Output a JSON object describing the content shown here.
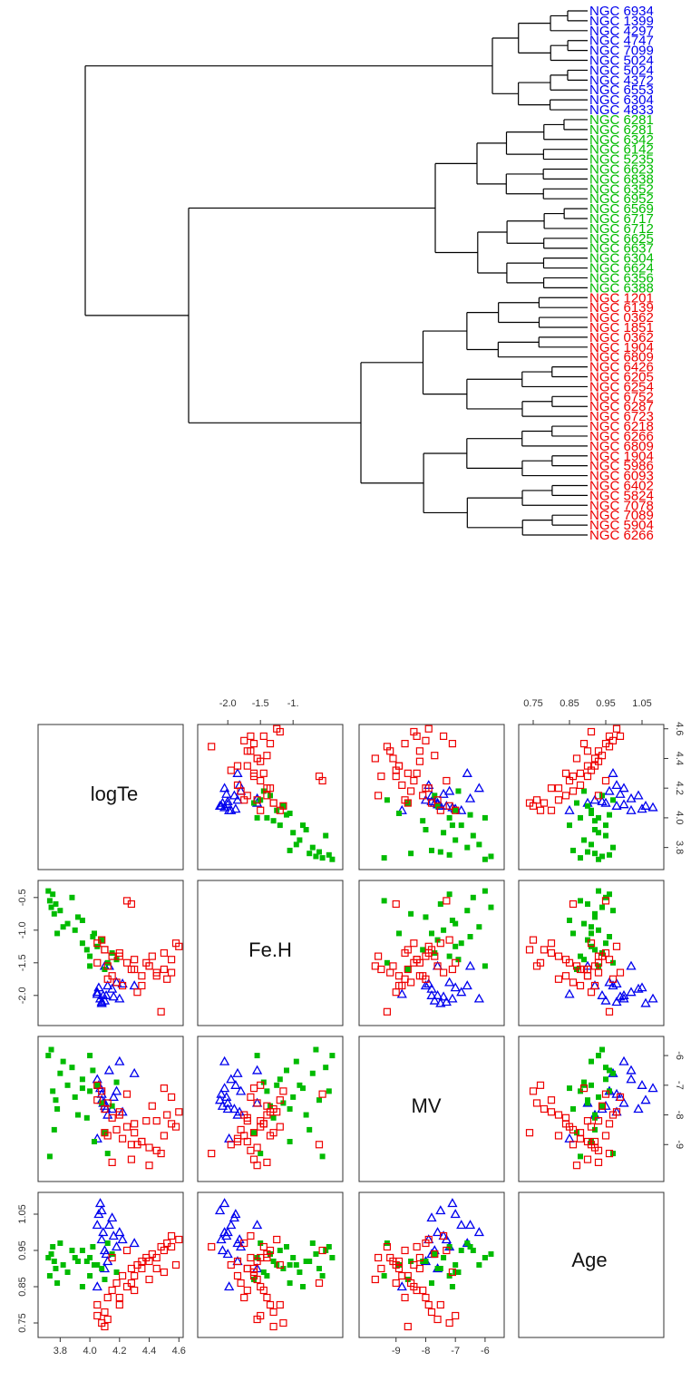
{
  "colors": {
    "cluster1": "#0000ee",
    "cluster2": "#00bb00",
    "cluster3": "#ee0000",
    "branch": "#000000",
    "panel_border": "#333333"
  },
  "chart_data": [
    {
      "type": "dendrogram",
      "orientation": "horizontal",
      "leaves": [
        {
          "label": "NGC 6934",
          "cluster": 1
        },
        {
          "label": "NGC 1399",
          "cluster": 1
        },
        {
          "label": "NGC 4297",
          "cluster": 1
        },
        {
          "label": "NGC 4747",
          "cluster": 1
        },
        {
          "label": "NGC 7099",
          "cluster": 1
        },
        {
          "label": "NGC 5024",
          "cluster": 1
        },
        {
          "label": "NGC 5024",
          "cluster": 1
        },
        {
          "label": "NGC 4372",
          "cluster": 1
        },
        {
          "label": "NGC 6553",
          "cluster": 1
        },
        {
          "label": "NGC 6304",
          "cluster": 1
        },
        {
          "label": "NGC 4833",
          "cluster": 1
        },
        {
          "label": "NGC 6281",
          "cluster": 2
        },
        {
          "label": "NGC 6281",
          "cluster": 2
        },
        {
          "label": "NGC 6342",
          "cluster": 2
        },
        {
          "label": "NGC 6142",
          "cluster": 2
        },
        {
          "label": "NGC 5235",
          "cluster": 2
        },
        {
          "label": "NGC 6623",
          "cluster": 2
        },
        {
          "label": "NGC 6838",
          "cluster": 2
        },
        {
          "label": "NGC 6352",
          "cluster": 2
        },
        {
          "label": "NGC 6952",
          "cluster": 2
        },
        {
          "label": "NGC 6569",
          "cluster": 2
        },
        {
          "label": "NGC 6717",
          "cluster": 2
        },
        {
          "label": "NGC 6712",
          "cluster": 2
        },
        {
          "label": "NGC 6625",
          "cluster": 2
        },
        {
          "label": "NGC 6637",
          "cluster": 2
        },
        {
          "label": "NGC 6304",
          "cluster": 2
        },
        {
          "label": "NGC 6624",
          "cluster": 2
        },
        {
          "label": "NGC 6356",
          "cluster": 2
        },
        {
          "label": "NGC 6388",
          "cluster": 2
        },
        {
          "label": "NGC 1201",
          "cluster": 3
        },
        {
          "label": "NGC 6139",
          "cluster": 3
        },
        {
          "label": "NGC 0362",
          "cluster": 3
        },
        {
          "label": "NGC 1851",
          "cluster": 3
        },
        {
          "label": "NGC 0362",
          "cluster": 3
        },
        {
          "label": "NGC 1904",
          "cluster": 3
        },
        {
          "label": "NGC 6809",
          "cluster": 3
        },
        {
          "label": "NGC 6426",
          "cluster": 3
        },
        {
          "label": "NGC 6205",
          "cluster": 3
        },
        {
          "label": "NGC 6254",
          "cluster": 3
        },
        {
          "label": "NGC 6752",
          "cluster": 3
        },
        {
          "label": "NGC 6287",
          "cluster": 3
        },
        {
          "label": "NGC 6723",
          "cluster": 3
        },
        {
          "label": "NGC 6218",
          "cluster": 3
        },
        {
          "label": "NGC 6266",
          "cluster": 3
        },
        {
          "label": "NGC 6809",
          "cluster": 3
        },
        {
          "label": "NGC 1904",
          "cluster": 3
        },
        {
          "label": "NGC 5986",
          "cluster": 3
        },
        {
          "label": "NGC 6093",
          "cluster": 3
        },
        {
          "label": "NGC 6402",
          "cluster": 3
        },
        {
          "label": "NGC 5824",
          "cluster": 3
        },
        {
          "label": "NGC 7078",
          "cluster": 3
        },
        {
          "label": "NGC 7089",
          "cluster": 3
        },
        {
          "label": "NGC 5904",
          "cluster": 3
        },
        {
          "label": "NGC 6266",
          "cluster": 3
        }
      ]
    },
    {
      "type": "scatter",
      "layout": "pairs",
      "variables": [
        "logTe",
        "Fe.H",
        "MV",
        "Age"
      ],
      "ranges": {
        "logTe": [
          3.7,
          4.58
        ],
        "Fe.H": [
          -2.35,
          -0.35
        ],
        "MV": [
          -10.0,
          -5.6
        ],
        "Age": [
          0.73,
          1.09
        ]
      },
      "ticks": {
        "logTe": [
          "3.8",
          "4.0",
          "4.2",
          "4.4",
          "4.6"
        ],
        "Fe.H": [
          "-2.0",
          "-1.5",
          "-1.0",
          "-0.5"
        ],
        "MV": [
          "-9",
          "-8",
          "-7",
          "-6"
        ],
        "Age": [
          "0.75",
          "0.85",
          "0.95",
          "1.05"
        ]
      },
      "top_axis_labels": {
        "Fe.H": [
          "-2.0",
          "-1.5",
          "-1."
        ],
        "Age": [
          "0.75",
          "0.85",
          "0.95",
          "1.05"
        ]
      },
      "series": [
        {
          "cluster": 1,
          "marker": "triangle",
          "logTe": [
            4.05,
            4.07,
            4.08,
            4.09,
            4.1,
            4.12,
            4.05,
            4.18,
            4.15,
            4.2,
            4.08,
            4.1,
            4.22,
            4.13,
            4.11,
            4.06,
            4.3,
            4.16
          ],
          "Fe.H": [
            -1.95,
            -2.05,
            -2.1,
            -2.0,
            -2.08,
            -1.85,
            -1.98,
            -1.8,
            -1.9,
            -2.05,
            -2.12,
            -1.55,
            -1.82,
            -1.55,
            -2.0,
            -1.88,
            -1.85,
            -2.02
          ],
          "MV": [
            -6.8,
            -7.1,
            -7.3,
            -7.6,
            -7.7,
            -8.0,
            -8.8,
            -7.2,
            -7.8,
            -6.2,
            -7.5,
            -7.6,
            -7.9,
            -6.5,
            -7.8,
            -7.0,
            -6.6,
            -7.4
          ],
          "Age": [
            1.02,
            1.08,
            0.98,
            1.0,
            0.95,
            0.92,
            0.85,
            0.96,
            1.04,
            1.0,
            1.06,
            0.9,
            0.98,
            1.02,
            0.94,
            1.05,
            0.97,
            0.99
          ]
        },
        {
          "cluster": 2,
          "marker": "square-filled",
          "logTe": [
            3.72,
            3.75,
            3.73,
            3.77,
            3.8,
            3.76,
            3.74,
            3.85,
            3.82,
            3.78,
            3.9,
            3.95,
            3.98,
            4.0,
            4.02,
            4.05,
            4.1,
            4.12,
            4.15,
            4.18,
            3.92,
            4.08,
            3.88,
            3.95,
            4.0,
            4.03
          ],
          "Fe.H": [
            -0.4,
            -0.45,
            -0.55,
            -0.6,
            -0.7,
            -0.75,
            -0.65,
            -0.9,
            -0.95,
            -1.05,
            -1.0,
            -1.2,
            -1.3,
            -1.4,
            -1.1,
            -1.25,
            -1.6,
            -1.5,
            -1.35,
            -1.45,
            -0.8,
            -1.15,
            -0.5,
            -0.85,
            -1.55,
            -1.05
          ],
          "MV": [
            -6.0,
            -7.2,
            -9.4,
            -7.5,
            -6.6,
            -8.5,
            -5.8,
            -7.0,
            -6.2,
            -7.8,
            -7.4,
            -6.8,
            -8.1,
            -7.2,
            -6.5,
            -7.0,
            -8.6,
            -9.3,
            -7.7,
            -6.9,
            -8.0,
            -7.6,
            -6.4,
            -7.1,
            -6.0,
            -8.9
          ],
          "Age": [
            0.93,
            0.96,
            0.88,
            0.9,
            0.97,
            0.92,
            0.94,
            0.89,
            0.91,
            0.86,
            0.93,
            0.95,
            0.92,
            0.88,
            0.96,
            0.91,
            0.87,
            0.97,
            0.94,
            0.89,
            0.92,
            0.9,
            0.95,
            0.85,
            0.93,
            0.91
          ]
        },
        {
          "cluster": 3,
          "marker": "square-open",
          "logTe": [
            4.05,
            4.1,
            4.2,
            4.25,
            4.3,
            4.35,
            4.4,
            4.45,
            4.5,
            4.55,
            4.6,
            4.08,
            4.12,
            4.15,
            4.18,
            4.22,
            4.28,
            4.32,
            4.38,
            4.42,
            4.48,
            4.52,
            4.55,
            4.1,
            4.2,
            4.3,
            4.4,
            4.5,
            4.58,
            4.35,
            4.25,
            4.15,
            4.45,
            4.05,
            4.12,
            4.28
          ],
          "Fe.H": [
            -1.2,
            -1.3,
            -1.4,
            -1.5,
            -1.6,
            -1.7,
            -1.55,
            -1.65,
            -1.35,
            -1.45,
            -1.25,
            -1.15,
            -1.55,
            -1.7,
            -1.8,
            -1.85,
            -1.6,
            -1.95,
            -1.5,
            -1.4,
            -2.25,
            -1.75,
            -1.65,
            -1.3,
            -1.35,
            -1.45,
            -1.55,
            -1.6,
            -1.2,
            -1.85,
            -0.55,
            -1.4,
            -1.7,
            -1.5,
            -1.75,
            -0.6
          ],
          "MV": [
            -7.5,
            -7.8,
            -8.0,
            -8.4,
            -8.6,
            -8.9,
            -9.1,
            -9.2,
            -8.7,
            -8.3,
            -7.9,
            -7.2,
            -7.6,
            -8.1,
            -8.5,
            -8.8,
            -9.5,
            -9.0,
            -8.2,
            -7.7,
            -9.3,
            -8.0,
            -7.4,
            -8.6,
            -7.9,
            -8.3,
            -9.7,
            -7.1,
            -8.4,
            -8.9,
            -7.3,
            -9.6,
            -8.2,
            -7.0,
            -8.7,
            -9.0
          ],
          "Age": [
            0.8,
            0.78,
            0.82,
            0.85,
            0.88,
            0.9,
            0.92,
            0.93,
            0.95,
            0.96,
            0.98,
            0.75,
            0.76,
            0.84,
            0.86,
            0.88,
            0.9,
            0.91,
            0.93,
            0.94,
            0.96,
            0.97,
            0.99,
            0.74,
            0.8,
            0.84,
            0.87,
            0.89,
            0.91,
            0.92,
            0.95,
            0.93,
            0.9,
            0.77,
            0.82,
            0.86
          ]
        }
      ]
    }
  ]
}
